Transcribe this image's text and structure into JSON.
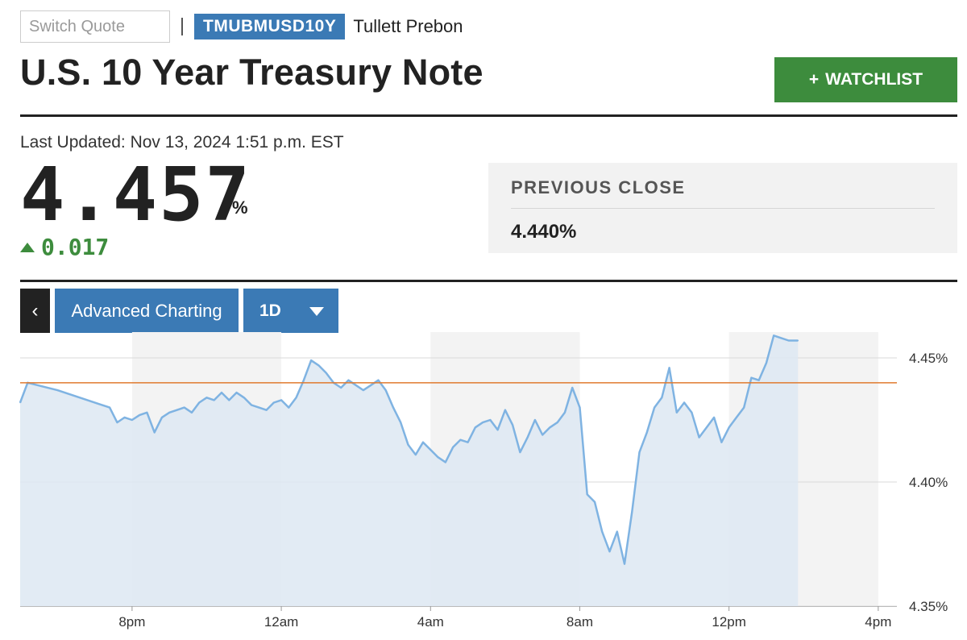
{
  "header": {
    "switch_placeholder": "Switch Quote",
    "ticker": "TMUBMUSD10Y",
    "exchange": "Tullett Prebon",
    "title": "U.S. 10 Year Treasury Note",
    "watchlist_plus": "+",
    "watchlist_label": "WATCHLIST"
  },
  "quote": {
    "last_updated": "Last Updated: Nov 13, 2024 1:51 p.m. EST",
    "price": "4.457",
    "price_unit": "%",
    "change": "0.017",
    "change_direction": "up",
    "previous_close_label": "PREVIOUS CLOSE",
    "previous_close": "4.440%"
  },
  "chart_controls": {
    "back_glyph": "‹",
    "advanced_charting": "Advanced Charting",
    "range": "1D"
  },
  "colors": {
    "accent_blue": "#3b7ab5",
    "positive_green": "#3d8c3d",
    "line": "#7fb3e2",
    "area_fill": "#dde8f2",
    "previous_close_line": "#e07a2e"
  },
  "chart_data": {
    "type": "area",
    "title": "",
    "xlabel": "",
    "ylabel": "",
    "ylim": [
      4.35,
      4.4604
    ],
    "y_ticks": [
      "4.45%",
      "4.40%",
      "4.35%"
    ],
    "y_tick_values": [
      4.45,
      4.4,
      4.35
    ],
    "x_ticks": [
      "8pm",
      "12am",
      "4am",
      "8am",
      "12pm",
      "4pm"
    ],
    "x_tick_hours": [
      20,
      24,
      28,
      32,
      36,
      40
    ],
    "x_range_hours": [
      17,
      40.5
    ],
    "shaded_bands_hours": [
      [
        20,
        24
      ],
      [
        28,
        32
      ],
      [
        36,
        40
      ]
    ],
    "reference_line": 4.44,
    "series": [
      {
        "x_hours": [
          17.0,
          17.2,
          18.0,
          19.4,
          19.6,
          19.8,
          20.0,
          20.2,
          20.4,
          20.6,
          20.8,
          21.0,
          21.2,
          21.4,
          21.6,
          21.8,
          22.0,
          22.2,
          22.4,
          22.6,
          22.8,
          23.0,
          23.2,
          23.4,
          23.6,
          23.8,
          24.0,
          24.2,
          24.4,
          24.6,
          24.8,
          25.0,
          25.2,
          25.4,
          25.6,
          25.8,
          26.0,
          26.2,
          26.4,
          26.6,
          26.8,
          27.0,
          27.2,
          27.4,
          27.6,
          27.8,
          28.0,
          28.2,
          28.4,
          28.6,
          28.8,
          29.0,
          29.2,
          29.4,
          29.6,
          29.8,
          30.0,
          30.2,
          30.4,
          30.6,
          30.8,
          31.0,
          31.2,
          31.4,
          31.6,
          31.8,
          32.0,
          32.2,
          32.4,
          32.6,
          32.8,
          33.0,
          33.2,
          33.4,
          33.6,
          33.8,
          34.0,
          34.2,
          34.4,
          34.6,
          34.8,
          35.0,
          35.2,
          35.4,
          35.6,
          35.8,
          36.0,
          36.2,
          36.4,
          36.6,
          36.8,
          37.0,
          37.2,
          37.4,
          37.6,
          37.85
        ],
        "values": [
          4.432,
          4.44,
          4.437,
          4.43,
          4.424,
          4.426,
          4.425,
          4.427,
          4.428,
          4.42,
          4.426,
          4.428,
          4.429,
          4.43,
          4.428,
          4.432,
          4.434,
          4.433,
          4.436,
          4.433,
          4.436,
          4.434,
          4.431,
          4.43,
          4.429,
          4.432,
          4.433,
          4.43,
          4.434,
          4.441,
          4.449,
          4.447,
          4.444,
          4.44,
          4.438,
          4.441,
          4.439,
          4.437,
          4.439,
          4.441,
          4.437,
          4.43,
          4.424,
          4.415,
          4.411,
          4.416,
          4.413,
          4.41,
          4.408,
          4.414,
          4.417,
          4.416,
          4.422,
          4.424,
          4.425,
          4.421,
          4.429,
          4.423,
          4.412,
          4.418,
          4.425,
          4.419,
          4.422,
          4.424,
          4.428,
          4.438,
          4.43,
          4.395,
          4.392,
          4.38,
          4.372,
          4.38,
          4.367,
          4.388,
          4.412,
          4.42,
          4.43,
          4.434,
          4.446,
          4.428,
          4.432,
          4.428,
          4.418,
          4.422,
          4.426,
          4.416,
          4.422,
          4.426,
          4.43,
          4.442,
          4.441,
          4.448,
          4.459,
          4.458,
          4.457,
          4.457
        ]
      }
    ]
  }
}
